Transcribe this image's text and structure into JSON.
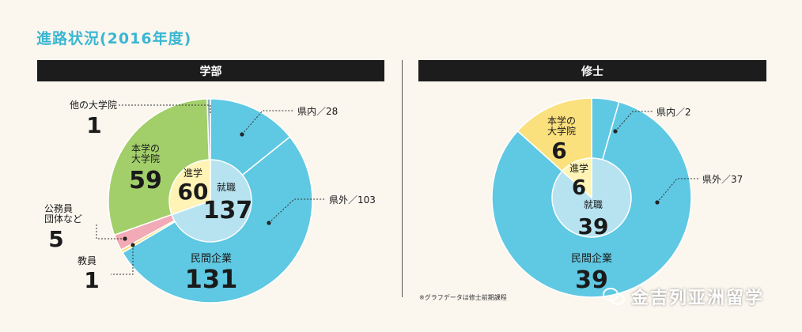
{
  "title": "進路状況(2016年度)",
  "note": "※グラフデータは修士前期課程",
  "watermark": "金吉列亚洲留学",
  "colors": {
    "accent": "#3bb6d2",
    "employment": "#5fc8e2",
    "employment_inner": "#b7e3f1",
    "advance": "#a3cf6b",
    "advance_inner": "#fff3b5",
    "yellow": "#fbe07e",
    "pink": "#f2aab6",
    "dark": "#1c1c1c"
  },
  "chart_data": [
    {
      "type": "pie",
      "title": "学部",
      "outer": [
        {
          "name": "県内",
          "value": 28,
          "label": "県内／28"
        },
        {
          "name": "県外",
          "value": 103,
          "label": "県外／103"
        },
        {
          "name": "教員",
          "value": 1,
          "label": "教員",
          "value_label": "1"
        },
        {
          "name": "公務員団体など",
          "value": 5,
          "label": "公務員\n団体など",
          "value_label": "5"
        },
        {
          "name": "本学の大学院",
          "value": 59,
          "label": "本学の\n大学院",
          "value_label": "59"
        },
        {
          "name": "他の大学院",
          "value": 1,
          "label": "他の大学院",
          "value_label": "1"
        }
      ],
      "groups": [
        {
          "name": "民間企業",
          "value": 131,
          "value_label": "131"
        }
      ],
      "inner": [
        {
          "name": "就職",
          "value": 137,
          "value_label": "137"
        },
        {
          "name": "進学",
          "value": 60,
          "value_label": "60"
        }
      ]
    },
    {
      "type": "pie",
      "title": "修士",
      "outer": [
        {
          "name": "県内",
          "value": 2,
          "label": "県内／2"
        },
        {
          "name": "県外",
          "value": 37,
          "label": "県外／37"
        },
        {
          "name": "本学の大学院",
          "value": 6,
          "label": "本学の\n大学院",
          "value_label": "6"
        }
      ],
      "groups": [
        {
          "name": "民間企業",
          "value": 39,
          "value_label": "39"
        }
      ],
      "inner": [
        {
          "name": "就職",
          "value": 39,
          "value_label": "39"
        },
        {
          "name": "進学",
          "value": 6,
          "value_label": "6"
        }
      ]
    }
  ]
}
